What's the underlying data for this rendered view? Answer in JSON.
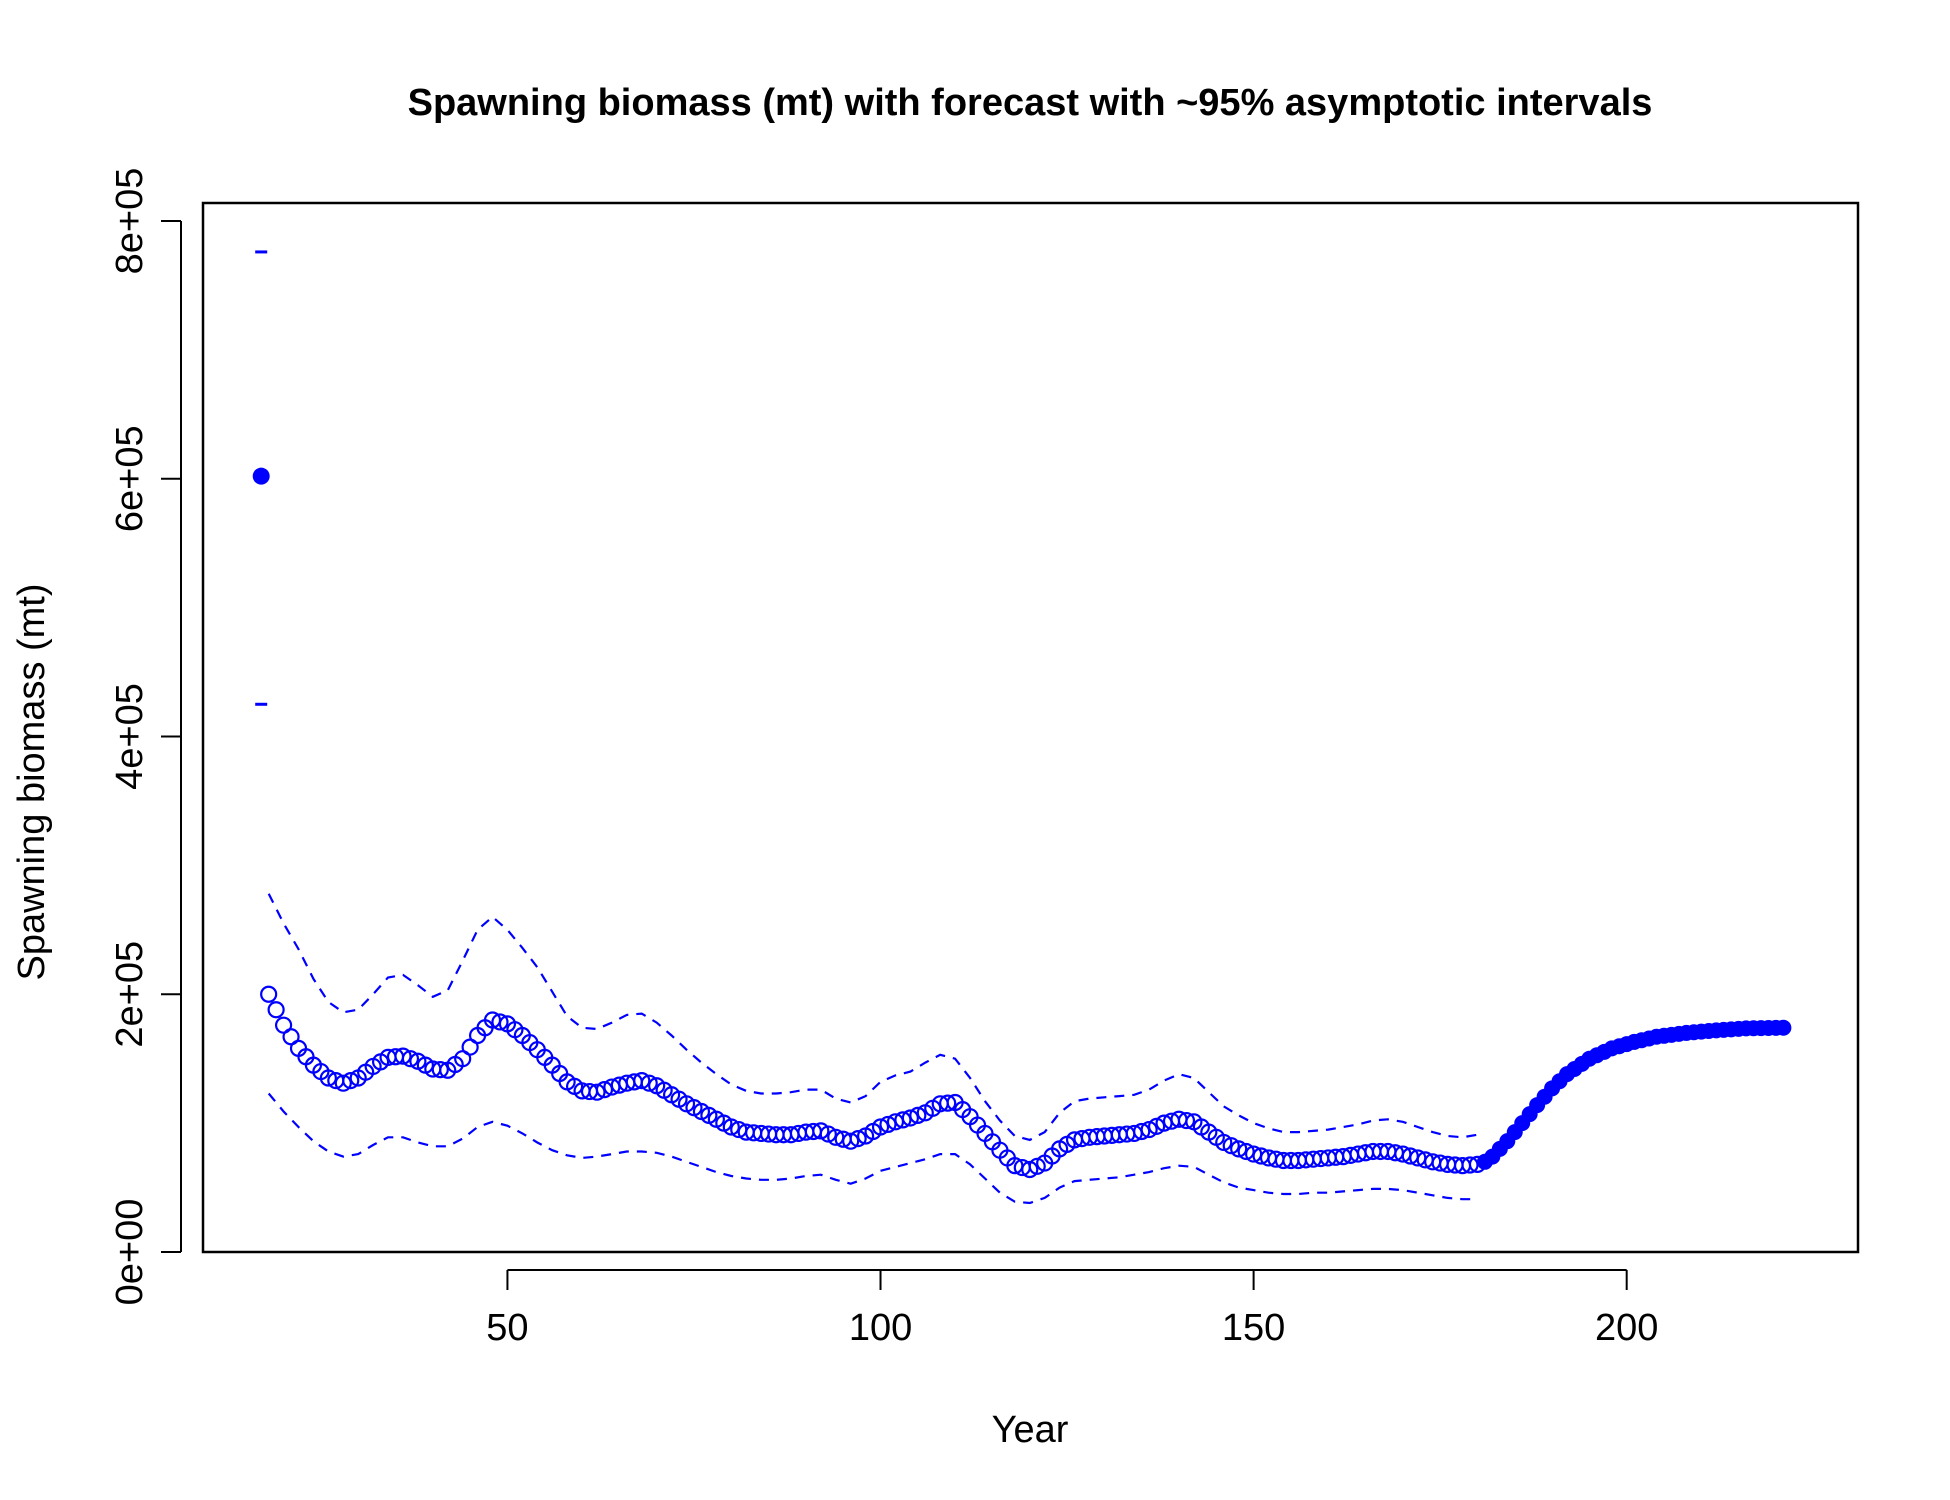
{
  "colors": {
    "series": "#0000ff",
    "axis": "#000000",
    "background": "#ffffff"
  },
  "chart_data": {
    "type": "scatter",
    "title": "Spawning biomass (mt) with forecast with ~95% asymptotic intervals",
    "xlabel": "Year",
    "ylabel": "Spawning biomass (mt)",
    "xlim": [
      9.2,
      231
    ],
    "ylim": [
      0,
      800000
    ],
    "grid": false,
    "legend": "none",
    "x_ticks": [
      50,
      100,
      150,
      200
    ],
    "x_tick_labels": [
      "50",
      "100",
      "150",
      "200"
    ],
    "y_ticks": [
      0,
      200000,
      400000,
      600000,
      800000
    ],
    "y_tick_labels": [
      "0e+00",
      "2e+05",
      "4e+05",
      "6e+05",
      "8e+05"
    ],
    "virgin": {
      "x": 17,
      "y": 602000,
      "lower": 425000,
      "upper": 776000,
      "marker": "filled circle with bar marks"
    },
    "estimate_knots": [
      [
        18,
        200000
      ],
      [
        19,
        188000
      ],
      [
        20,
        176000
      ],
      [
        22,
        158000
      ],
      [
        24,
        145000
      ],
      [
        26,
        135000
      ],
      [
        28,
        131000
      ],
      [
        30,
        135000
      ],
      [
        32,
        144000
      ],
      [
        34,
        151000
      ],
      [
        36,
        152000
      ],
      [
        38,
        148000
      ],
      [
        40,
        142000
      ],
      [
        42,
        141000
      ],
      [
        44,
        150000
      ],
      [
        46,
        168000
      ],
      [
        48,
        180000
      ],
      [
        50,
        177000
      ],
      [
        52,
        168000
      ],
      [
        54,
        157000
      ],
      [
        56,
        145000
      ],
      [
        58,
        132000
      ],
      [
        60,
        125000
      ],
      [
        62,
        124000
      ],
      [
        64,
        128000
      ],
      [
        66,
        131000
      ],
      [
        68,
        133000
      ],
      [
        70,
        129000
      ],
      [
        72,
        122000
      ],
      [
        74,
        115000
      ],
      [
        76,
        109000
      ],
      [
        78,
        103000
      ],
      [
        80,
        97000
      ],
      [
        82,
        93000
      ],
      [
        84,
        92000
      ],
      [
        86,
        91000
      ],
      [
        88,
        91000
      ],
      [
        90,
        93000
      ],
      [
        92,
        94000
      ],
      [
        94,
        89000
      ],
      [
        96,
        86000
      ],
      [
        98,
        90000
      ],
      [
        100,
        97000
      ],
      [
        102,
        101000
      ],
      [
        104,
        104000
      ],
      [
        106,
        108000
      ],
      [
        108,
        115000
      ],
      [
        110,
        116000
      ],
      [
        112,
        105000
      ],
      [
        114,
        92000
      ],
      [
        116,
        79000
      ],
      [
        118,
        67000
      ],
      [
        120,
        64000
      ],
      [
        122,
        69000
      ],
      [
        124,
        80000
      ],
      [
        126,
        87000
      ],
      [
        128,
        89000
      ],
      [
        130,
        90000
      ],
      [
        132,
        91000
      ],
      [
        134,
        92000
      ],
      [
        136,
        95000
      ],
      [
        138,
        100000
      ],
      [
        140,
        103000
      ],
      [
        142,
        101000
      ],
      [
        144,
        93000
      ],
      [
        146,
        85000
      ],
      [
        148,
        80000
      ],
      [
        150,
        76000
      ],
      [
        152,
        73000
      ],
      [
        154,
        71000
      ],
      [
        156,
        71000
      ],
      [
        158,
        72000
      ],
      [
        160,
        73000
      ],
      [
        162,
        74000
      ],
      [
        164,
        76000
      ],
      [
        166,
        78000
      ],
      [
        168,
        78000
      ],
      [
        170,
        76000
      ],
      [
        172,
        73000
      ],
      [
        174,
        70000
      ],
      [
        176,
        68000
      ],
      [
        178,
        67000
      ],
      [
        180,
        68000
      ]
    ],
    "forecast_knots": [
      [
        181,
        70000
      ],
      [
        182,
        74000
      ],
      [
        184,
        86000
      ],
      [
        186,
        100000
      ],
      [
        188,
        114000
      ],
      [
        190,
        127000
      ],
      [
        192,
        138000
      ],
      [
        195,
        150000
      ],
      [
        198,
        158000
      ],
      [
        201,
        163000
      ],
      [
        204,
        167000
      ],
      [
        208,
        170000
      ],
      [
        212,
        172000
      ],
      [
        216,
        173500
      ],
      [
        221,
        174000
      ]
    ],
    "upper_ci_knots": [
      [
        18,
        278000
      ],
      [
        20,
        255000
      ],
      [
        22,
        235000
      ],
      [
        24,
        212000
      ],
      [
        26,
        194000
      ],
      [
        28,
        186000
      ],
      [
        30,
        188000
      ],
      [
        32,
        200000
      ],
      [
        34,
        213000
      ],
      [
        36,
        215000
      ],
      [
        38,
        207000
      ],
      [
        40,
        198000
      ],
      [
        42,
        203000
      ],
      [
        44,
        226000
      ],
      [
        46,
        250000
      ],
      [
        48,
        260000
      ],
      [
        50,
        250000
      ],
      [
        52,
        236000
      ],
      [
        54,
        221000
      ],
      [
        56,
        202000
      ],
      [
        58,
        183000
      ],
      [
        60,
        174000
      ],
      [
        62,
        173000
      ],
      [
        64,
        178000
      ],
      [
        66,
        184000
      ],
      [
        68,
        185000
      ],
      [
        70,
        178000
      ],
      [
        72,
        168000
      ],
      [
        74,
        157000
      ],
      [
        76,
        147000
      ],
      [
        78,
        138000
      ],
      [
        80,
        130000
      ],
      [
        82,
        125000
      ],
      [
        84,
        123000
      ],
      [
        86,
        123000
      ],
      [
        88,
        124000
      ],
      [
        90,
        126000
      ],
      [
        92,
        126000
      ],
      [
        94,
        119000
      ],
      [
        96,
        116000
      ],
      [
        98,
        121000
      ],
      [
        100,
        132000
      ],
      [
        102,
        137000
      ],
      [
        104,
        140000
      ],
      [
        106,
        147000
      ],
      [
        108,
        153000
      ],
      [
        110,
        150000
      ],
      [
        112,
        135000
      ],
      [
        114,
        117000
      ],
      [
        116,
        102000
      ],
      [
        118,
        90000
      ],
      [
        120,
        87000
      ],
      [
        122,
        93000
      ],
      [
        124,
        108000
      ],
      [
        126,
        117000
      ],
      [
        128,
        119000
      ],
      [
        130,
        120000
      ],
      [
        132,
        121000
      ],
      [
        134,
        122000
      ],
      [
        136,
        126000
      ],
      [
        138,
        133000
      ],
      [
        140,
        138000
      ],
      [
        142,
        135000
      ],
      [
        144,
        124000
      ],
      [
        146,
        113000
      ],
      [
        148,
        106000
      ],
      [
        150,
        100000
      ],
      [
        152,
        96000
      ],
      [
        154,
        93000
      ],
      [
        156,
        93000
      ],
      [
        158,
        94000
      ],
      [
        160,
        95000
      ],
      [
        162,
        97000
      ],
      [
        164,
        99000
      ],
      [
        166,
        102000
      ],
      [
        168,
        103000
      ],
      [
        170,
        101000
      ],
      [
        172,
        97000
      ],
      [
        174,
        93000
      ],
      [
        176,
        90000
      ],
      [
        178,
        89000
      ],
      [
        180,
        91000
      ]
    ],
    "lower_ci_knots": [
      [
        18,
        123000
      ],
      [
        20,
        109000
      ],
      [
        22,
        97000
      ],
      [
        24,
        86000
      ],
      [
        26,
        78000
      ],
      [
        28,
        74000
      ],
      [
        30,
        76000
      ],
      [
        32,
        83000
      ],
      [
        34,
        89000
      ],
      [
        36,
        89000
      ],
      [
        38,
        85000
      ],
      [
        40,
        82000
      ],
      [
        42,
        82000
      ],
      [
        44,
        88000
      ],
      [
        46,
        97000
      ],
      [
        48,
        101000
      ],
      [
        50,
        98000
      ],
      [
        52,
        92000
      ],
      [
        54,
        85000
      ],
      [
        56,
        79000
      ],
      [
        58,
        75000
      ],
      [
        60,
        73000
      ],
      [
        62,
        74000
      ],
      [
        64,
        76000
      ],
      [
        66,
        78000
      ],
      [
        68,
        78000
      ],
      [
        70,
        77000
      ],
      [
        72,
        74000
      ],
      [
        74,
        70000
      ],
      [
        76,
        66000
      ],
      [
        78,
        62000
      ],
      [
        80,
        59000
      ],
      [
        82,
        57000
      ],
      [
        84,
        56000
      ],
      [
        86,
        56000
      ],
      [
        88,
        57000
      ],
      [
        90,
        59000
      ],
      [
        92,
        60000
      ],
      [
        94,
        56000
      ],
      [
        96,
        53000
      ],
      [
        98,
        57000
      ],
      [
        100,
        63000
      ],
      [
        102,
        66000
      ],
      [
        104,
        69000
      ],
      [
        106,
        72000
      ],
      [
        108,
        76000
      ],
      [
        110,
        76000
      ],
      [
        112,
        68000
      ],
      [
        114,
        57000
      ],
      [
        116,
        46000
      ],
      [
        118,
        39000
      ],
      [
        120,
        38000
      ],
      [
        122,
        42000
      ],
      [
        124,
        50000
      ],
      [
        126,
        55000
      ],
      [
        128,
        56000
      ],
      [
        130,
        57000
      ],
      [
        132,
        58000
      ],
      [
        134,
        60000
      ],
      [
        136,
        62000
      ],
      [
        138,
        65000
      ],
      [
        140,
        67000
      ],
      [
        142,
        66000
      ],
      [
        144,
        60000
      ],
      [
        146,
        54000
      ],
      [
        148,
        50000
      ],
      [
        150,
        48000
      ],
      [
        152,
        46000
      ],
      [
        154,
        45000
      ],
      [
        156,
        45000
      ],
      [
        158,
        46000
      ],
      [
        160,
        46000
      ],
      [
        162,
        47000
      ],
      [
        164,
        48000
      ],
      [
        166,
        49000
      ],
      [
        168,
        49000
      ],
      [
        170,
        48000
      ],
      [
        172,
        46000
      ],
      [
        174,
        44000
      ],
      [
        176,
        42000
      ],
      [
        178,
        41000
      ],
      [
        180,
        41000
      ]
    ]
  }
}
